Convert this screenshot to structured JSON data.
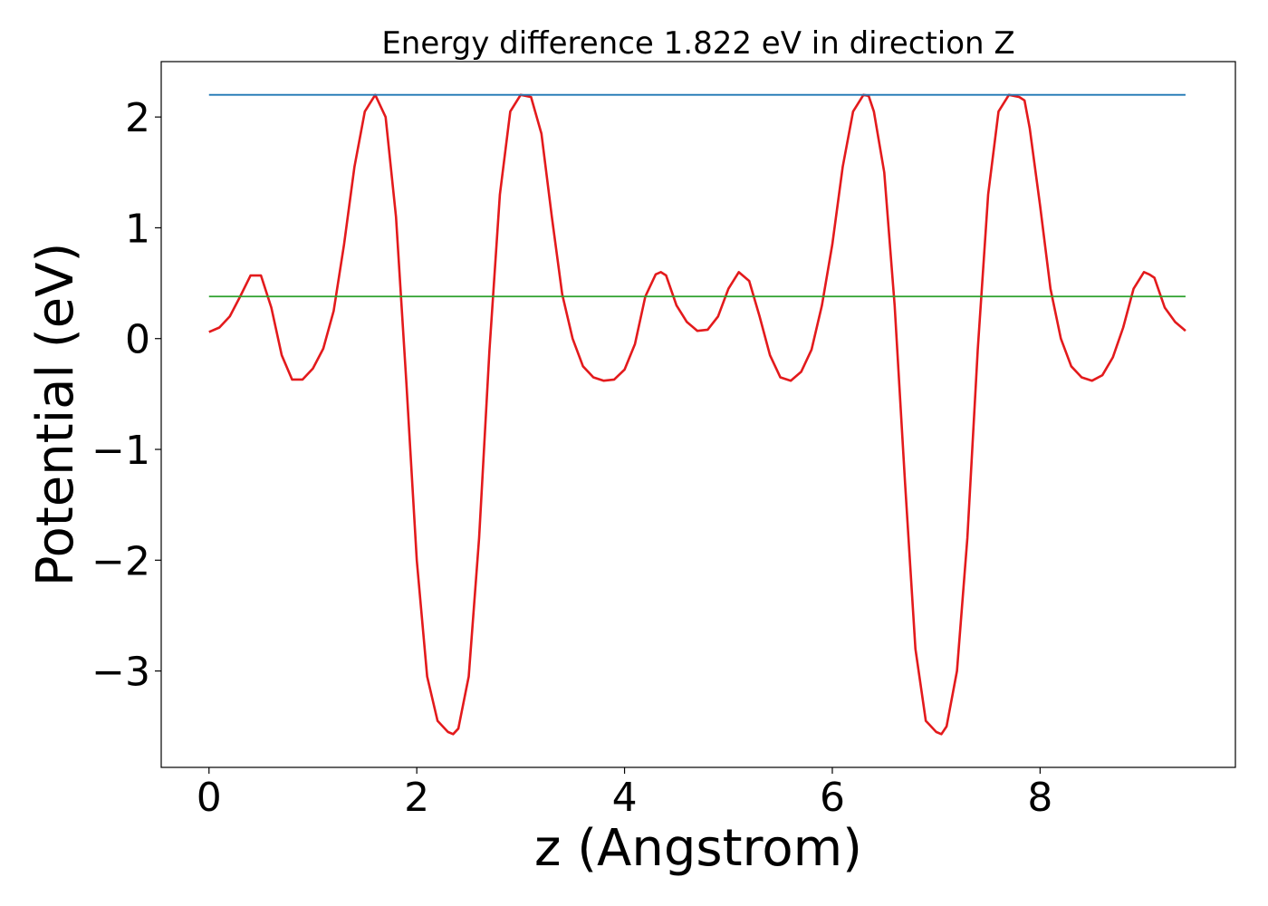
{
  "chart_data": {
    "type": "line",
    "title": "Energy difference 1.822 eV in direction Z",
    "xlabel": "z (Angstrom)",
    "ylabel": "Potential (eV)",
    "xlim": [
      -0.46,
      9.88
    ],
    "ylim": [
      -3.87,
      2.5
    ],
    "x_ticks": [
      0,
      2,
      4,
      6,
      8
    ],
    "x_tick_labels": [
      "0",
      "2",
      "4",
      "6",
      "8"
    ],
    "y_ticks": [
      -3,
      -2,
      -1,
      0,
      1,
      2
    ],
    "y_tick_labels": [
      "−3",
      "−2",
      "−1",
      "0",
      "1",
      "2"
    ],
    "grid": false,
    "series": [
      {
        "color": "#e31a1c",
        "x": [
          0.0,
          0.1,
          0.2,
          0.3,
          0.4,
          0.5,
          0.6,
          0.7,
          0.8,
          0.9,
          1.0,
          1.1,
          1.2,
          1.3,
          1.4,
          1.5,
          1.6,
          1.7,
          1.8,
          1.9,
          2.0,
          2.1,
          2.2,
          2.3,
          2.35,
          2.4,
          2.5,
          2.6,
          2.7,
          2.8,
          2.9,
          3.0,
          3.1,
          3.2,
          3.3,
          3.4,
          3.5,
          3.6,
          3.7,
          3.8,
          3.9,
          4.0,
          4.1,
          4.2,
          4.3,
          4.35,
          4.4,
          4.5,
          4.6,
          4.7,
          4.8,
          4.9,
          5.0,
          5.1,
          5.2,
          5.3,
          5.4,
          5.5,
          5.6,
          5.7,
          5.8,
          5.9,
          6.0,
          6.1,
          6.2,
          6.3,
          6.35,
          6.4,
          6.5,
          6.6,
          6.7,
          6.8,
          6.9,
          7.0,
          7.05,
          7.1,
          7.2,
          7.3,
          7.4,
          7.5,
          7.6,
          7.7,
          7.8,
          7.85,
          7.9,
          8.0,
          8.1,
          8.2,
          8.3,
          8.4,
          8.5,
          8.6,
          8.7,
          8.8,
          8.9,
          9.0,
          9.05,
          9.1,
          9.2,
          9.3,
          9.4
        ],
        "y": [
          0.06,
          0.1,
          0.2,
          0.38,
          0.57,
          0.57,
          0.28,
          -0.15,
          -0.37,
          -0.37,
          -0.27,
          -0.09,
          0.25,
          0.85,
          1.55,
          2.05,
          2.2,
          2.0,
          1.1,
          -0.4,
          -2.0,
          -3.05,
          -3.45,
          -3.55,
          -3.57,
          -3.52,
          -3.05,
          -1.8,
          -0.1,
          1.3,
          2.05,
          2.2,
          2.18,
          1.85,
          1.1,
          0.4,
          0.0,
          -0.25,
          -0.35,
          -0.38,
          -0.37,
          -0.28,
          -0.05,
          0.38,
          0.58,
          0.6,
          0.57,
          0.3,
          0.15,
          0.07,
          0.08,
          0.2,
          0.45,
          0.6,
          0.52,
          0.2,
          -0.15,
          -0.35,
          -0.38,
          -0.3,
          -0.1,
          0.3,
          0.85,
          1.55,
          2.05,
          2.2,
          2.19,
          2.05,
          1.5,
          0.3,
          -1.3,
          -2.8,
          -3.45,
          -3.55,
          -3.57,
          -3.5,
          -3.0,
          -1.8,
          -0.1,
          1.3,
          2.05,
          2.2,
          2.18,
          2.15,
          1.9,
          1.2,
          0.45,
          0.0,
          -0.25,
          -0.35,
          -0.38,
          -0.33,
          -0.17,
          0.1,
          0.45,
          0.6,
          0.58,
          0.55,
          0.28,
          0.15,
          0.07
        ]
      },
      {
        "color": "#1f77b4",
        "x": [
          0.0,
          9.4
        ],
        "y": [
          2.2,
          2.2
        ]
      },
      {
        "color": "#2ca02c",
        "x": [
          0.0,
          9.4
        ],
        "y": [
          0.38,
          0.38
        ]
      }
    ]
  }
}
